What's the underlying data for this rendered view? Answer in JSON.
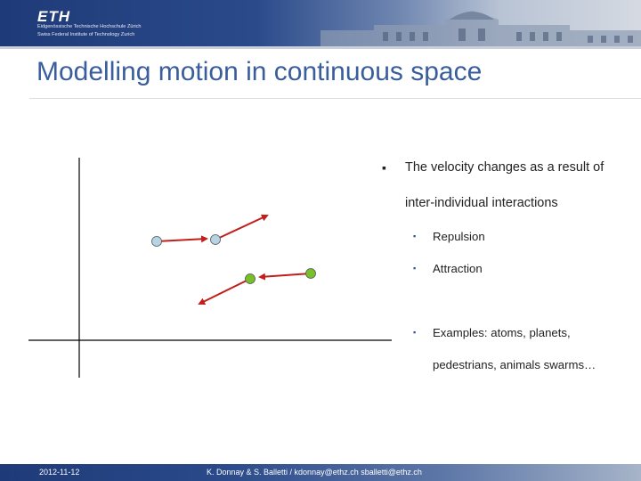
{
  "header": {
    "logo": "ETH",
    "institution_line1": "Eidgenössische Technische Hochschule Zürich",
    "institution_line2": "Swiss Federal Institute of Technology Zurich"
  },
  "slide": {
    "title": "Modelling motion in continuous space",
    "bullet_marker": "▪",
    "bullet_text": "The velocity changes as a result of inter-individual interactions",
    "sub_marker": "▪",
    "sub_bullets": [
      {
        "text": "Repulsion"
      },
      {
        "text": "Attraction"
      },
      {
        "text": "Examples: atoms, planets, pedestrians, animals swarms…"
      }
    ]
  },
  "colors": {
    "accent": "#3a5d9c",
    "arrow": "#c0201c",
    "particle_blue": "#b7d3e6",
    "particle_green": "#77c02a"
  },
  "footer": {
    "date": "2012-11-12",
    "authors": "K. Donnay & S. Balletti / kdonnay@ethz.ch  sballetti@ethz.ch"
  }
}
